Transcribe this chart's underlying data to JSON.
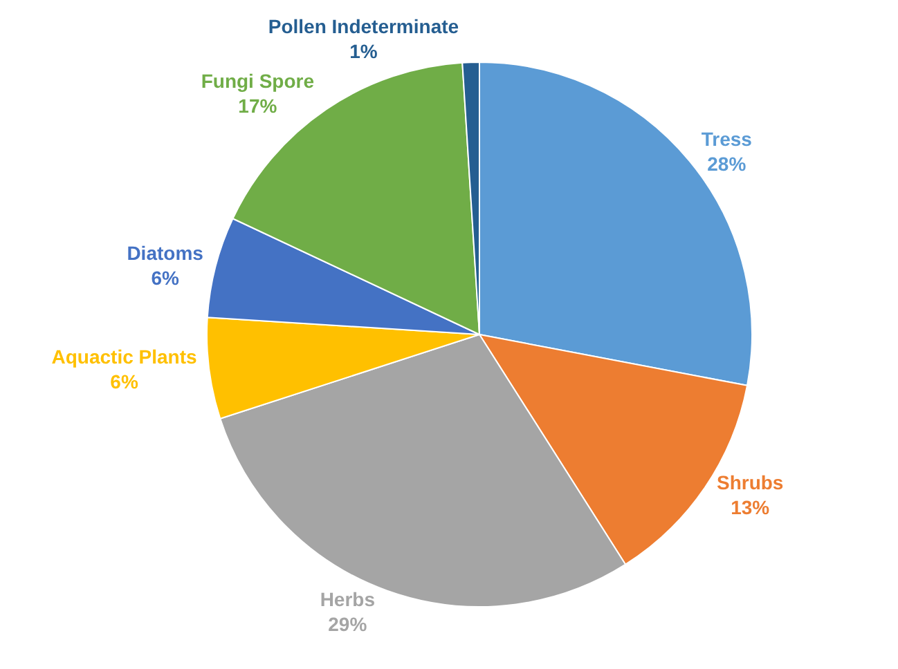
{
  "chart_data": {
    "type": "pie",
    "categories": [
      "Tress",
      "Shrubs",
      "Herbs",
      "Aquactic Plants",
      "Diatoms",
      "Fungi Spore",
      "Pollen Indeterminate"
    ],
    "values": [
      28,
      13,
      29,
      6,
      6,
      17,
      1
    ],
    "value_labels": [
      "28%",
      "13%",
      "29%",
      "6%",
      "6%",
      "17%",
      "1%"
    ],
    "colors": [
      "#5b9bd5",
      "#ed7d31",
      "#a5a5a5",
      "#ffc000",
      "#4472c4",
      "#70ad47",
      "#255e91"
    ],
    "legend": false
  }
}
